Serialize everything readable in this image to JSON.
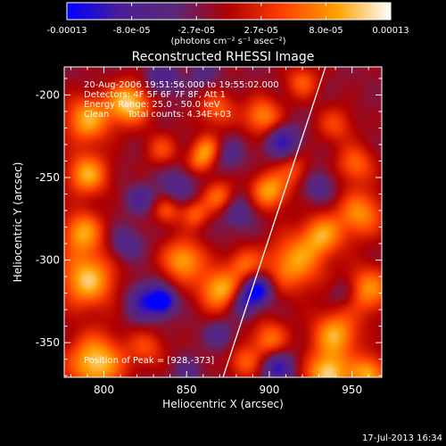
{
  "chart_data": {
    "type": "heatmap",
    "title": "Reconstructed RHESSI Image",
    "xlabel": "Heliocentric X (arcsec)",
    "ylabel": "Heliocentric Y (arcsec)",
    "xlim": [
      776,
      968
    ],
    "ylim": [
      -371,
      -183
    ],
    "x_ticks": [
      800,
      850,
      900,
      950
    ],
    "y_ticks": [
      -200,
      -250,
      -300,
      -350
    ],
    "colorbar": {
      "range": [
        -0.00013,
        0.00013
      ],
      "tick_labels": [
        "-0.00013",
        "-8.0e-05",
        "-2.7e-05",
        "2.7e-05",
        "8.0e-05",
        "0.00013"
      ],
      "unit_label": "(photons cm⁻² s⁻¹ asec⁻²)",
      "colors": [
        "#0000ff",
        "#4b1e96",
        "#5a2878",
        "#b00000",
        "#ff4000",
        "#ffa000",
        "#ffffff"
      ]
    },
    "annotations": {
      "time_range": "20-Aug-2006 19:51:56.000 to 19:55:02.000",
      "detectors": "Detectors: 4F 5F 6F 7F 8F, Att 1",
      "energy": "Energy Range: 25.0 - 50.0 keV",
      "method": "Clean",
      "total_counts": "Total counts: 4.34E+03",
      "peak": "Position of Peak = [928,-373]"
    },
    "limb_line": [
      {
        "x": 872,
        "y": -371
      },
      {
        "x": 934,
        "y": -183
      }
    ],
    "blobs": [
      {
        "x": 795,
        "y": -362,
        "v": 1.0,
        "s": 12
      },
      {
        "x": 826,
        "y": -353,
        "v": 0.45,
        "s": 8
      },
      {
        "x": 790,
        "y": -312,
        "v": 0.95,
        "s": 12
      },
      {
        "x": 787,
        "y": -283,
        "v": 0.8,
        "s": 9
      },
      {
        "x": 790,
        "y": -248,
        "v": 0.85,
        "s": 9
      },
      {
        "x": 790,
        "y": -215,
        "v": 0.85,
        "s": 10
      },
      {
        "x": 815,
        "y": -205,
        "v": 1.0,
        "s": 9
      },
      {
        "x": 835,
        "y": -233,
        "v": 0.45,
        "s": 7
      },
      {
        "x": 868,
        "y": -208,
        "v": 0.55,
        "s": 8
      },
      {
        "x": 870,
        "y": -262,
        "v": 0.7,
        "s": 7
      },
      {
        "x": 858,
        "y": -240,
        "v": 0.55,
        "s": 6
      },
      {
        "x": 838,
        "y": -270,
        "v": 0.5,
        "s": 6
      },
      {
        "x": 848,
        "y": -300,
        "v": 0.85,
        "s": 9
      },
      {
        "x": 870,
        "y": -318,
        "v": 0.9,
        "s": 9
      },
      {
        "x": 885,
        "y": -302,
        "v": 0.55,
        "s": 7
      },
      {
        "x": 855,
        "y": -272,
        "v": 0.55,
        "s": 6
      },
      {
        "x": 900,
        "y": -258,
        "v": 0.85,
        "s": 8
      },
      {
        "x": 896,
        "y": -213,
        "v": 0.75,
        "s": 8
      },
      {
        "x": 920,
        "y": -192,
        "v": 0.55,
        "s": 7
      },
      {
        "x": 940,
        "y": -218,
        "v": 0.45,
        "s": 8
      },
      {
        "x": 915,
        "y": -245,
        "v": 0.45,
        "s": 7
      },
      {
        "x": 915,
        "y": -302,
        "v": 0.8,
        "s": 12
      },
      {
        "x": 932,
        "y": -285,
        "v": 0.75,
        "s": 9
      },
      {
        "x": 955,
        "y": -272,
        "v": 0.75,
        "s": 10
      },
      {
        "x": 952,
        "y": -242,
        "v": 0.6,
        "s": 8
      },
      {
        "x": 960,
        "y": -318,
        "v": 0.75,
        "s": 10
      },
      {
        "x": 940,
        "y": -345,
        "v": 0.85,
        "s": 10
      },
      {
        "x": 900,
        "y": -348,
        "v": 0.65,
        "s": 8
      },
      {
        "x": 885,
        "y": -362,
        "v": 0.55,
        "s": 7
      },
      {
        "x": 935,
        "y": -369,
        "v": 1.0,
        "s": 9
      },
      {
        "x": 960,
        "y": -369,
        "v": 0.85,
        "s": 8
      },
      {
        "x": 863,
        "y": -232,
        "v": 0.6,
        "s": 6
      },
      {
        "x": 826,
        "y": -325,
        "v": -0.75,
        "s": 8
      },
      {
        "x": 836,
        "y": -325,
        "v": -0.9,
        "s": 5
      },
      {
        "x": 893,
        "y": -318,
        "v": -0.95,
        "s": 6
      },
      {
        "x": 885,
        "y": -326,
        "v": -0.6,
        "s": 6
      },
      {
        "x": 908,
        "y": -228,
        "v": -0.7,
        "s": 7
      },
      {
        "x": 905,
        "y": -365,
        "v": -0.7,
        "s": 7
      },
      {
        "x": 822,
        "y": -263,
        "v": -0.45,
        "s": 6
      },
      {
        "x": 845,
        "y": -255,
        "v": -0.4,
        "s": 8
      },
      {
        "x": 813,
        "y": -290,
        "v": -0.45,
        "s": 7
      },
      {
        "x": 880,
        "y": -270,
        "v": -0.45,
        "s": 8
      },
      {
        "x": 875,
        "y": -236,
        "v": -0.35,
        "s": 7
      },
      {
        "x": 835,
        "y": -190,
        "v": -0.5,
        "s": 7
      },
      {
        "x": 860,
        "y": -188,
        "v": -0.3,
        "s": 7
      },
      {
        "x": 870,
        "y": -345,
        "v": -0.4,
        "s": 6
      },
      {
        "x": 850,
        "y": -368,
        "v": -0.3,
        "s": 6
      },
      {
        "x": 930,
        "y": -255,
        "v": -0.4,
        "s": 7
      },
      {
        "x": 945,
        "y": -320,
        "v": -0.3,
        "s": 6
      }
    ]
  },
  "footer": {
    "date": "17-Jul-2013 16:34"
  }
}
